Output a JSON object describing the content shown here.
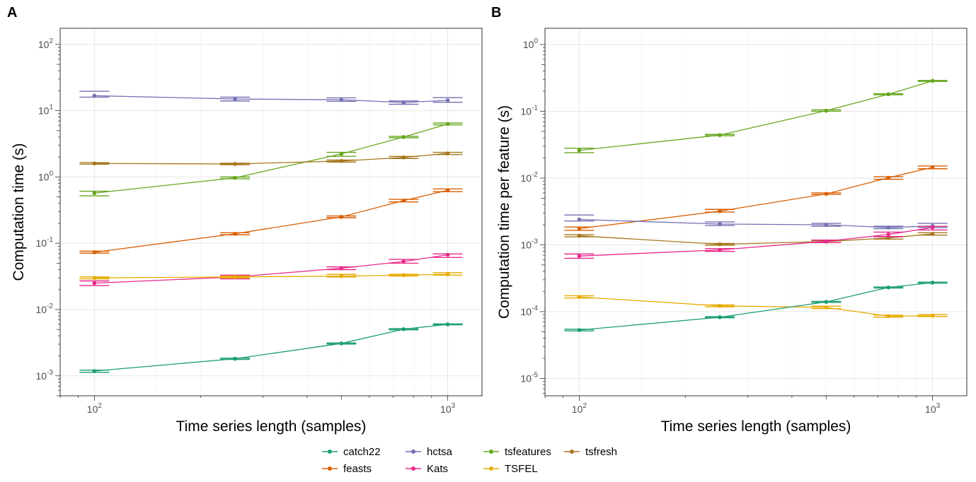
{
  "figure": {
    "colors": {
      "catch22": "#1b9e77",
      "feasts": "#d95f02",
      "hctsa": "#7570b3",
      "Kats": "#e7298a",
      "tsfeatures": "#66a61e",
      "TSFEL": "#e6ab02",
      "tsfresh": "#a6761d"
    },
    "legend_labels": [
      "catch22",
      "hctsa",
      "tsfeatures",
      "tsfresh",
      "feasts",
      "Kats",
      "TSFEL"
    ]
  },
  "chart_data": [
    {
      "panel": "A",
      "type": "line",
      "xlabel": "Time series length (samples)",
      "ylabel": "Computation time (s)",
      "xscale": "log",
      "yscale": "log",
      "xlim": [
        80,
        1250
      ],
      "ylim": [
        0.0005,
        175
      ],
      "xticks": [
        {
          "base": "10",
          "exp": "2",
          "value": 100
        },
        {
          "base": "10",
          "exp": "3",
          "value": 1000
        }
      ],
      "yticks": [
        {
          "base": "10",
          "exp": "-3",
          "value": 0.001
        },
        {
          "base": "10",
          "exp": "-2",
          "value": 0.01
        },
        {
          "base": "10",
          "exp": "-1",
          "value": 0.1
        },
        {
          "base": "10",
          "exp": "0",
          "value": 1
        },
        {
          "base": "10",
          "exp": "1",
          "value": 10
        },
        {
          "base": "10",
          "exp": "2",
          "value": 100
        }
      ],
      "grid": true,
      "x": [
        100,
        250,
        500,
        750,
        1000
      ],
      "series": [
        {
          "name": "hctsa",
          "values": [
            16.8,
            15.0,
            14.6,
            13.3,
            14.3
          ],
          "lower": [
            16.0,
            14.0,
            13.8,
            12.5,
            13.4
          ],
          "upper": [
            19.6,
            16.0,
            15.6,
            14.0,
            15.7
          ]
        },
        {
          "name": "tsfeatures",
          "values": [
            0.57,
            0.97,
            2.23,
            4.0,
            6.3
          ],
          "lower": [
            0.52,
            0.94,
            2.05,
            3.9,
            6.1
          ],
          "upper": [
            0.61,
            1.0,
            2.35,
            4.1,
            6.5
          ]
        },
        {
          "name": "tsfresh",
          "values": [
            1.6,
            1.57,
            1.74,
            1.97,
            2.27
          ],
          "lower": [
            1.56,
            1.53,
            1.68,
            1.9,
            2.18
          ],
          "upper": [
            1.64,
            1.61,
            1.8,
            2.04,
            2.35
          ]
        },
        {
          "name": "feasts",
          "values": [
            0.073,
            0.139,
            0.25,
            0.44,
            0.63
          ],
          "lower": [
            0.071,
            0.134,
            0.243,
            0.42,
            0.6
          ],
          "upper": [
            0.076,
            0.144,
            0.258,
            0.46,
            0.66
          ]
        },
        {
          "name": "Kats",
          "values": [
            0.025,
            0.031,
            0.042,
            0.053,
            0.067
          ],
          "lower": [
            0.023,
            0.029,
            0.04,
            0.05,
            0.061
          ],
          "upper": [
            0.027,
            0.033,
            0.044,
            0.057,
            0.069
          ]
        },
        {
          "name": "TSFEL",
          "values": [
            0.03,
            0.031,
            0.032,
            0.033,
            0.034
          ],
          "lower": [
            0.029,
            0.03,
            0.031,
            0.032,
            0.033
          ],
          "upper": [
            0.031,
            0.032,
            0.034,
            0.034,
            0.036
          ]
        },
        {
          "name": "catch22",
          "values": [
            0.00118,
            0.00181,
            0.00308,
            0.00505,
            0.00597
          ],
          "lower": [
            0.00113,
            0.00177,
            0.00302,
            0.00495,
            0.00588
          ],
          "upper": [
            0.00122,
            0.00185,
            0.00314,
            0.00515,
            0.00606
          ]
        }
      ]
    },
    {
      "panel": "B",
      "type": "line",
      "xlabel": "Time series length (samples)",
      "ylabel": "Computation time per feature (s)",
      "xscale": "log",
      "yscale": "log",
      "xlim": [
        80,
        1250
      ],
      "ylim": [
        5.5e-06,
        1.75
      ],
      "xticks": [
        {
          "base": "10",
          "exp": "2",
          "value": 100
        },
        {
          "base": "10",
          "exp": "3",
          "value": 1000
        }
      ],
      "yticks": [
        {
          "base": "10",
          "exp": "-5",
          "value": 1e-05
        },
        {
          "base": "10",
          "exp": "-4",
          "value": 0.0001
        },
        {
          "base": "10",
          "exp": "-3",
          "value": 0.001
        },
        {
          "base": "10",
          "exp": "-2",
          "value": 0.01
        },
        {
          "base": "10",
          "exp": "-1",
          "value": 0.1
        },
        {
          "base": "10",
          "exp": "0",
          "value": 1
        }
      ],
      "grid": true,
      "x": [
        100,
        250,
        500,
        750,
        1000
      ],
      "series": [
        {
          "name": "tsfeatures",
          "values": [
            0.026,
            0.044,
            0.102,
            0.18,
            0.285
          ],
          "lower": [
            0.024,
            0.043,
            0.1,
            0.177,
            0.28
          ],
          "upper": [
            0.028,
            0.045,
            0.105,
            0.183,
            0.29
          ]
        },
        {
          "name": "feasts",
          "values": [
            0.00175,
            0.0032,
            0.0058,
            0.0101,
            0.0145
          ],
          "lower": [
            0.00165,
            0.0031,
            0.0057,
            0.0096,
            0.0138
          ],
          "upper": [
            0.00185,
            0.0034,
            0.006,
            0.0105,
            0.0152
          ]
        },
        {
          "name": "hctsa",
          "values": [
            0.0024,
            0.00205,
            0.002,
            0.00182,
            0.00192
          ],
          "lower": [
            0.00228,
            0.00195,
            0.0019,
            0.00175,
            0.00182
          ],
          "upper": [
            0.0028,
            0.0022,
            0.0021,
            0.0019,
            0.0021
          ]
        },
        {
          "name": "tsfresh",
          "values": [
            0.00137,
            0.00102,
            0.00112,
            0.00127,
            0.00146
          ],
          "lower": [
            0.00132,
            0.00099,
            0.00108,
            0.00122,
            0.0014
          ],
          "upper": [
            0.00142,
            0.00105,
            0.00116,
            0.00132,
            0.00152
          ]
        },
        {
          "name": "Kats",
          "values": [
            0.00068,
            0.00084,
            0.00113,
            0.00143,
            0.00182
          ],
          "lower": [
            0.00063,
            0.0008,
            0.00108,
            0.00133,
            0.00167
          ],
          "upper": [
            0.00073,
            0.00088,
            0.00118,
            0.00155,
            0.00189
          ]
        },
        {
          "name": "TSFEL",
          "values": [
            0.000166,
            0.000122,
            0.000116,
            8.55e-05,
            8.7e-05
          ],
          "lower": [
            0.00016,
            0.000118,
            0.000111,
            8.25e-05,
            8.45e-05
          ],
          "upper": [
            0.000173,
            0.000126,
            0.000121,
            8.85e-05,
            9.05e-05
          ]
        },
        {
          "name": "catch22",
          "values": [
            5.3e-05,
            8.25e-05,
            0.00014,
            0.00023,
            0.000272
          ],
          "lower": [
            5.15e-05,
            8.1e-05,
            0.0001375,
            0.000226,
            0.000267
          ],
          "upper": [
            5.45e-05,
            8.4e-05,
            0.0001425,
            0.000234,
            0.000277
          ]
        }
      ]
    }
  ]
}
